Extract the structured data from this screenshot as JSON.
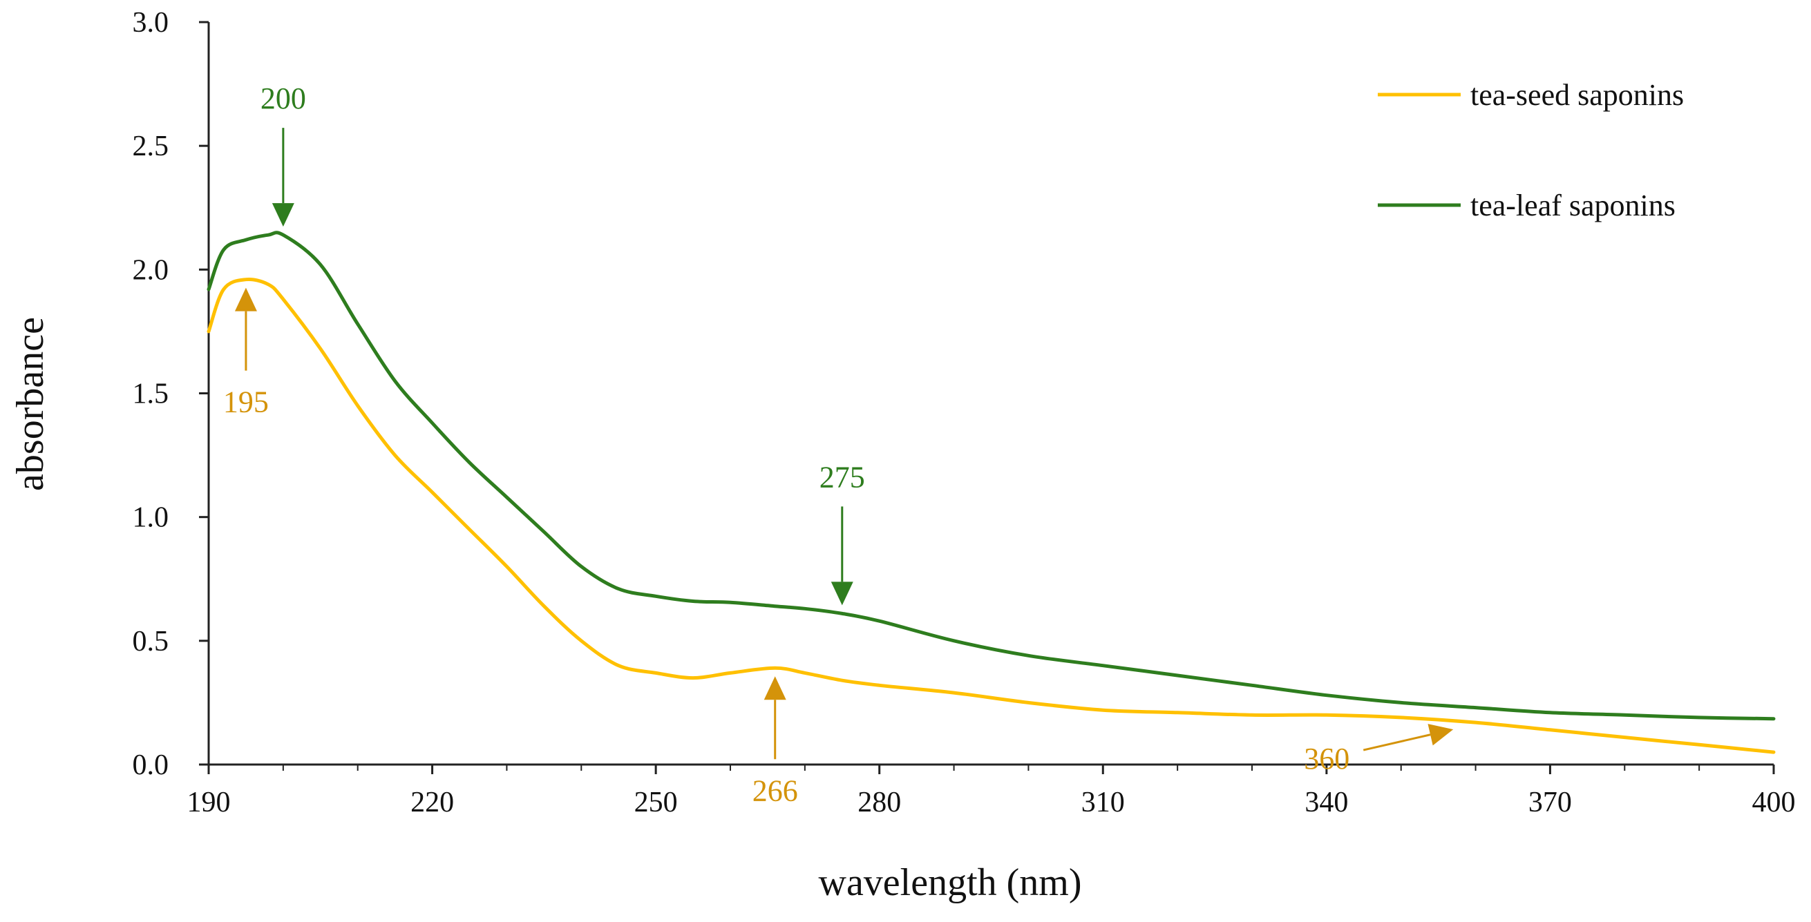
{
  "chart_data": {
    "type": "line",
    "title": "",
    "xlabel": "wavelength (nm)",
    "ylabel": "absorbance",
    "xlim": [
      190,
      400
    ],
    "ylim": [
      0,
      3.0
    ],
    "xticks": [
      190,
      220,
      250,
      280,
      310,
      340,
      370,
      400
    ],
    "xtick_labels": [
      "190",
      "220",
      "250",
      "280",
      "310",
      "340",
      "370",
      "400"
    ],
    "yticks": [
      0,
      0.5,
      1.0,
      1.5,
      2.0,
      2.5,
      3.0
    ],
    "ytick_labels": [
      "0.0",
      "0.5",
      "1.0",
      "1.5",
      "2.0",
      "2.5",
      "3.0"
    ],
    "grid": false,
    "legend_position": "top-right",
    "series": [
      {
        "name": "tea-seed saponins",
        "color": "#ffc000",
        "x": [
          190,
          192,
          195,
          198,
          200,
          205,
          210,
          215,
          220,
          225,
          230,
          235,
          240,
          245,
          250,
          255,
          260,
          266,
          270,
          275,
          280,
          290,
          300,
          310,
          320,
          330,
          340,
          350,
          360,
          370,
          380,
          390,
          400
        ],
        "y": [
          1.75,
          1.92,
          1.96,
          1.94,
          1.88,
          1.68,
          1.45,
          1.25,
          1.1,
          0.95,
          0.8,
          0.64,
          0.5,
          0.4,
          0.37,
          0.35,
          0.37,
          0.39,
          0.37,
          0.34,
          0.32,
          0.29,
          0.25,
          0.22,
          0.21,
          0.2,
          0.2,
          0.19,
          0.17,
          0.14,
          0.11,
          0.08,
          0.05
        ]
      },
      {
        "name": "tea-leaf saponins",
        "color": "#2e7d1e",
        "x": [
          190,
          192,
          195,
          198,
          200,
          205,
          210,
          215,
          220,
          225,
          230,
          235,
          240,
          245,
          250,
          255,
          260,
          266,
          270,
          275,
          280,
          290,
          300,
          310,
          320,
          330,
          340,
          350,
          360,
          370,
          380,
          390,
          400
        ],
        "y": [
          1.92,
          2.08,
          2.12,
          2.14,
          2.14,
          2.02,
          1.78,
          1.55,
          1.38,
          1.22,
          1.08,
          0.94,
          0.8,
          0.71,
          0.68,
          0.66,
          0.655,
          0.64,
          0.63,
          0.61,
          0.58,
          0.5,
          0.44,
          0.4,
          0.36,
          0.32,
          0.28,
          0.25,
          0.23,
          0.21,
          0.2,
          0.19,
          0.185
        ]
      }
    ],
    "annotations": [
      {
        "text": "200",
        "x": 200,
        "y": 2.14,
        "series": "tea-leaf saponins",
        "direction": "down",
        "color": "#2e7d1e"
      },
      {
        "text": "195",
        "x": 195,
        "y": 1.96,
        "series": "tea-seed saponins",
        "direction": "up",
        "color": "#d4930a"
      },
      {
        "text": "275",
        "x": 275,
        "y": 0.61,
        "series": "tea-leaf saponins",
        "direction": "down",
        "color": "#2e7d1e"
      },
      {
        "text": "266",
        "x": 266,
        "y": 0.39,
        "series": "tea-seed saponins",
        "direction": "up",
        "color": "#d4930a"
      },
      {
        "text": "360",
        "x": 357,
        "y": 0.17,
        "series": "tea-seed saponins",
        "direction": "right",
        "color": "#d4930a"
      }
    ]
  }
}
